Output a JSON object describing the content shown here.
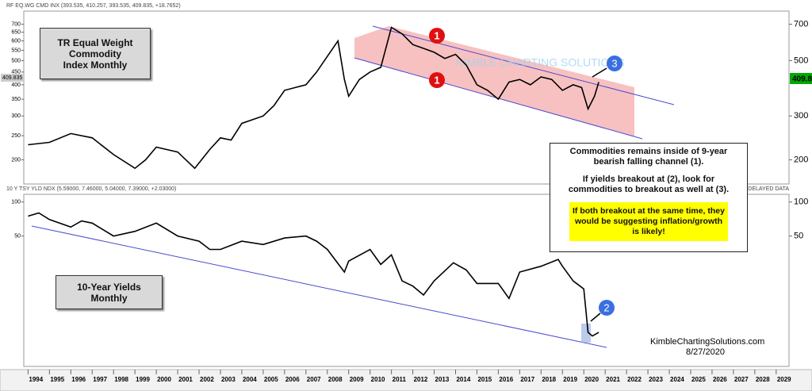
{
  "chart_data": [
    {
      "type": "line",
      "header": "RF EQ.WG CMD INX (393.535, 410.257, 393.535, 409.835, +18.7652)",
      "label_box": [
        "TR Equal Weight Commodity",
        "Index Monthly"
      ],
      "watermark": "KIMBLE CHARTING SOLUTIONS",
      "last_value_right": "409.8",
      "last_value_left": "409.835",
      "callouts": [
        "1",
        "1",
        "3"
      ],
      "color": "#000000",
      "log_y": true,
      "xlim": [
        1993.8,
        2029.6
      ],
      "ylim": [
        160,
        790
      ],
      "yticks": [
        700,
        650,
        600,
        550,
        500,
        450,
        400,
        350,
        300,
        250,
        200
      ],
      "y2lim": [
        160,
        790
      ],
      "y2ticks": [
        700,
        500,
        300,
        200
      ],
      "x": [
        1994,
        1995,
        1996,
        1997,
        1998,
        1999,
        1999.5,
        2000,
        2001,
        2001.8,
        2002.5,
        2003,
        2003.5,
        2004,
        2005,
        2005.5,
        2006,
        2006.5,
        2007,
        2007.5,
        2008,
        2008.5,
        2008.8,
        2009,
        2009.5,
        2010,
        2010.5,
        2011,
        2011.5,
        2012,
        2012.5,
        2013,
        2013.5,
        2014,
        2014.5,
        2015,
        2015.5,
        2016,
        2016.5,
        2017,
        2017.5,
        2018,
        2018.5,
        2019,
        2019.5,
        2019.9,
        2020.2,
        2020.5,
        2020.7
      ],
      "values": [
        230,
        235,
        255,
        245,
        210,
        185,
        200,
        225,
        215,
        185,
        220,
        245,
        240,
        280,
        300,
        330,
        380,
        390,
        400,
        450,
        520,
        600,
        420,
        360,
        420,
        450,
        470,
        680,
        640,
        580,
        560,
        540,
        510,
        530,
        480,
        400,
        380,
        350,
        410,
        420,
        400,
        430,
        420,
        380,
        400,
        390,
        320,
        360,
        410
      ]
    },
    {
      "type": "line",
      "header": "10 Y TSY YLD NDX (5.59000, 7.46000, 5.04000, 7.39000, +2.03000)",
      "status": "DELAYED DATA",
      "label_box": [
        "10-Year Yields",
        "Monthly"
      ],
      "callouts": [
        "2"
      ],
      "commentary": [
        "Commodities remains inside of 9-year bearish falling channel (1).",
        "If yields breakout at (2), look for commodities to breakout as well at (3).",
        "If both breakout at the same time, they would be suggesting inflation/growth is likely!"
      ],
      "source": "KimbleChartingSolutions.com",
      "date": "8/27/2020",
      "color": "#000000",
      "log_y": true,
      "xlim": [
        1993.8,
        2029.6
      ],
      "xticks": [
        1994,
        1995,
        1996,
        1997,
        1998,
        1999,
        2000,
        2001,
        2002,
        2003,
        2004,
        2005,
        2006,
        2007,
        2008,
        2009,
        2010,
        2011,
        2012,
        2013,
        2014,
        2015,
        2016,
        2017,
        2018,
        2019,
        2020,
        2021,
        2022,
        2023,
        2024,
        2025,
        2026,
        2027,
        2028,
        2029
      ],
      "ylim": [
        3.5,
        117
      ],
      "yticks": [
        100,
        50
      ],
      "y2lim": [
        3.5,
        117
      ],
      "y2ticks": [
        100,
        50
      ],
      "x": [
        1994,
        1994.5,
        1995,
        1996,
        1996.5,
        1997,
        1998,
        1999,
        2000,
        2001,
        2002,
        2002.5,
        2003,
        2004,
        2005,
        2006,
        2007,
        2007.5,
        2008,
        2008.8,
        2009,
        2010,
        2010.5,
        2011,
        2011.5,
        2012,
        2012.5,
        2013,
        2013.9,
        2014.5,
        2015,
        2016,
        2016.5,
        2017,
        2018,
        2018.8,
        2019,
        2019.5,
        2020,
        2020.2,
        2020.4,
        2020.7
      ],
      "values": [
        75,
        80,
        70,
        60,
        68,
        65,
        50,
        55,
        65,
        50,
        45,
        38,
        38,
        45,
        42,
        48,
        50,
        45,
        38,
        24,
        30,
        38,
        28,
        34,
        20,
        18,
        15,
        20,
        29,
        25,
        19,
        19,
        14,
        24,
        27,
        31,
        27,
        20,
        17,
        7,
        6.5,
        7
      ]
    }
  ]
}
